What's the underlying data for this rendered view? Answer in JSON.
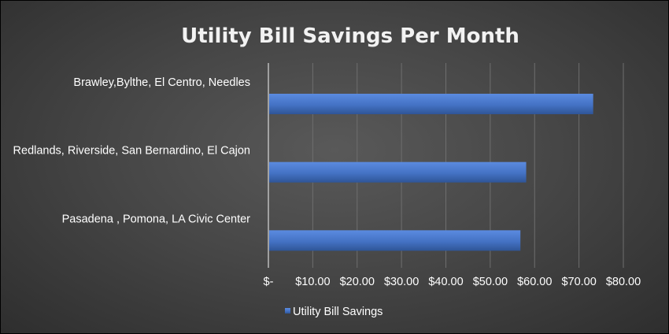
{
  "chart_data": {
    "type": "bar",
    "orientation": "horizontal",
    "title": "Utility Bill Savings Per Month",
    "categories": [
      "Brawley,Bylthe, El Centro, Needles",
      "Redlands, Riverside, San Bernardino, El Cajon",
      "Pasadena , Pomona, LA Civic Center"
    ],
    "series": [
      {
        "name": "Utility Bill Savings",
        "values": [
          73.2,
          58.1,
          56.8
        ],
        "color": "#4472c4"
      }
    ],
    "xlim": [
      0,
      80
    ],
    "xticks": [
      0,
      10,
      20,
      30,
      40,
      50,
      60,
      70,
      80
    ],
    "xtick_labels": [
      "$-",
      "$10.00",
      "$20.00",
      "$30.00",
      "$40.00",
      "$50.00",
      "$60.00",
      "$70.00",
      "$80.00"
    ],
    "grid": "vertical",
    "legend_position": "bottom",
    "xlabel": "",
    "ylabel": ""
  }
}
